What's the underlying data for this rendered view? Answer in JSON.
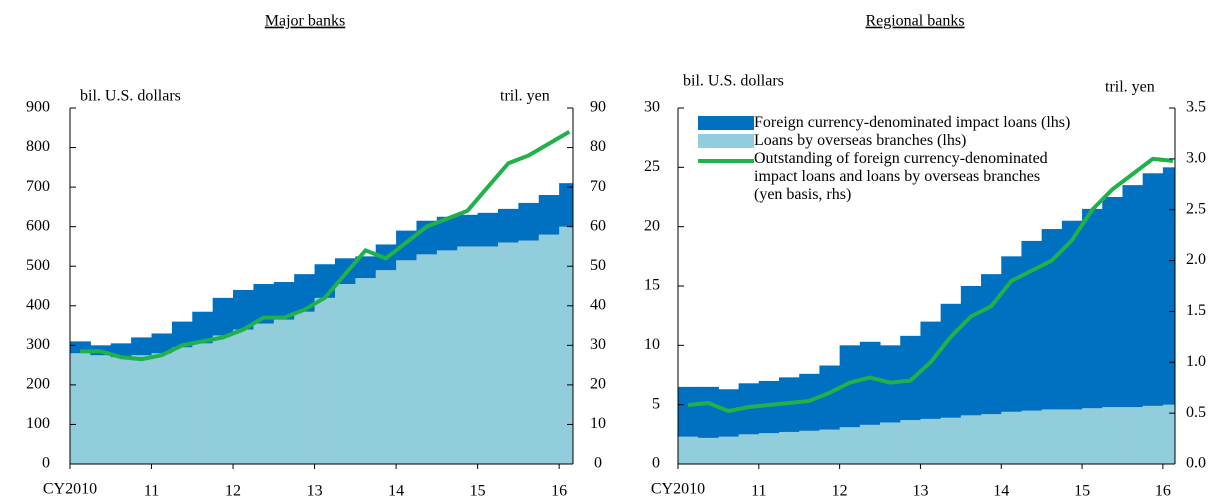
{
  "chart_data": [
    {
      "type": "bar-line",
      "title": "Major banks",
      "ylabel": "bil. U.S. dollars",
      "y2label": "tril. yen",
      "x": [
        2010,
        2010.25,
        2010.5,
        2010.75,
        2011,
        2011.25,
        2011.5,
        2011.75,
        2012,
        2012.25,
        2012.5,
        2012.75,
        2013,
        2013.25,
        2013.5,
        2013.75,
        2014,
        2014.25,
        2014.5,
        2014.75,
        2015,
        2015.25,
        2015.5,
        2015.75,
        2016
      ],
      "series": [
        {
          "color": "#92cddc",
          "values": [
            280,
            275,
            270,
            275,
            280,
            295,
            305,
            325,
            340,
            355,
            365,
            385,
            420,
            455,
            470,
            490,
            515,
            530,
            540,
            550,
            550,
            560,
            565,
            580,
            600
          ]
        },
        {
          "color": "#0070c0",
          "values": [
            30,
            25,
            35,
            45,
            50,
            65,
            80,
            95,
            100,
            100,
            95,
            95,
            85,
            65,
            55,
            65,
            75,
            85,
            85,
            80,
            85,
            85,
            95,
            100,
            110
          ]
        },
        {
          "color": "#1fb14a",
          "axis": "y2",
          "values": [
            28.5,
            28.5,
            27,
            26.5,
            27.5,
            30,
            31,
            32,
            34,
            37,
            37,
            39,
            42,
            48,
            54,
            52,
            56,
            60,
            62,
            64,
            70,
            76,
            78,
            81,
            84
          ]
        }
      ],
      "xlim": [
        2010,
        2016.17
      ],
      "xticks": [
        {
          "value": 2010,
          "label": "CY2010"
        },
        {
          "value": 2011,
          "label": "11"
        },
        {
          "value": 2012,
          "label": "12"
        },
        {
          "value": 2013,
          "label": "13"
        },
        {
          "value": 2014,
          "label": "14"
        },
        {
          "value": 2015,
          "label": "15"
        },
        {
          "value": 2016,
          "label": "16"
        }
      ],
      "ylim": [
        0,
        900
      ],
      "yticks": [
        0,
        100,
        200,
        300,
        400,
        500,
        600,
        700,
        800,
        900
      ],
      "y2lim": [
        0,
        90
      ],
      "y2ticks": [
        0,
        10,
        20,
        30,
        40,
        50,
        60,
        70,
        80,
        90
      ]
    },
    {
      "type": "bar-line",
      "title": "Regional banks",
      "ylabel": "bil. U.S. dollars",
      "y2label": "tril. yen",
      "legend": "top-left",
      "x": [
        2010,
        2010.25,
        2010.5,
        2010.75,
        2011,
        2011.25,
        2011.5,
        2011.75,
        2012,
        2012.25,
        2012.5,
        2012.75,
        2013,
        2013.25,
        2013.5,
        2013.75,
        2014,
        2014.25,
        2014.5,
        2014.75,
        2015,
        2015.25,
        2015.5,
        2015.75,
        2016
      ],
      "series": [
        {
          "name": "Loans by overseas branches (lhs)",
          "color": "#92cddc",
          "values": [
            2.3,
            2.2,
            2.3,
            2.5,
            2.6,
            2.7,
            2.8,
            2.9,
            3.1,
            3.3,
            3.5,
            3.7,
            3.8,
            3.9,
            4.1,
            4.2,
            4.4,
            4.5,
            4.6,
            4.6,
            4.7,
            4.8,
            4.8,
            4.9,
            5.0
          ]
        },
        {
          "name": "Foreign currency-denominated impact loans (lhs)",
          "color": "#0070c0",
          "values": [
            4.2,
            4.3,
            4.0,
            4.3,
            4.4,
            4.6,
            4.8,
            5.4,
            6.9,
            7.0,
            6.5,
            7.1,
            8.2,
            9.6,
            10.9,
            11.8,
            13.1,
            14.3,
            15.2,
            15.9,
            16.8,
            17.7,
            18.7,
            19.6,
            20.0
          ]
        },
        {
          "name": "Outstanding of foreign currency-denominated impact loans and loans by overseas branches (yen basis, rhs)",
          "color": "#1fb14a",
          "axis": "y2",
          "values": [
            0.58,
            0.6,
            0.52,
            0.56,
            0.58,
            0.6,
            0.62,
            0.7,
            0.8,
            0.85,
            0.8,
            0.82,
            1.0,
            1.25,
            1.45,
            1.55,
            1.8,
            1.9,
            2.0,
            2.2,
            2.5,
            2.7,
            2.85,
            3.0,
            2.98
          ]
        }
      ],
      "xlim": [
        2010,
        2016.15
      ],
      "xticks": [
        {
          "value": 2010,
          "label": "CY2010"
        },
        {
          "value": 2011,
          "label": "11"
        },
        {
          "value": 2012,
          "label": "12"
        },
        {
          "value": 2013,
          "label": "13"
        },
        {
          "value": 2014,
          "label": "14"
        },
        {
          "value": 2015,
          "label": "15"
        },
        {
          "value": 2016,
          "label": "16"
        }
      ],
      "ylim": [
        0,
        30
      ],
      "yticks": [
        0,
        5,
        10,
        15,
        20,
        25,
        30
      ],
      "y2lim": [
        0,
        3.5
      ],
      "y2ticks": [
        {
          "value": 0,
          "label": "0.0"
        },
        0.5,
        {
          "value": 1,
          "label": "1.0"
        },
        1.5,
        {
          "value": 2,
          "label": "2.0"
        },
        2.5,
        {
          "value": 3,
          "label": "3.0"
        },
        3.5
      ]
    }
  ]
}
